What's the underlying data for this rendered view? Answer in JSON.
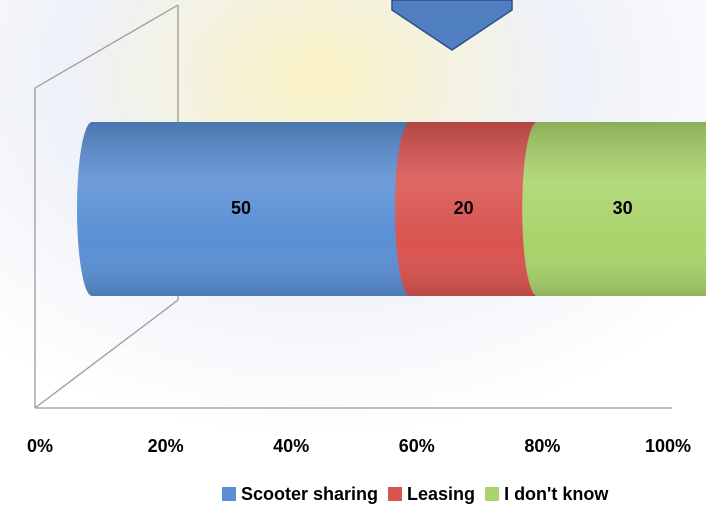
{
  "chart_data": {
    "type": "stacked-bar-horizontal",
    "series": [
      {
        "name": "Scooter sharing",
        "color": "#5a8fd4",
        "values": [
          50
        ]
      },
      {
        "name": "Leasing",
        "color": "#d9534f",
        "values": [
          20
        ]
      },
      {
        "name": "I don't know",
        "color": "#a9d46b",
        "values": [
          30
        ]
      }
    ],
    "xlim": [
      0,
      100
    ],
    "xticks": [
      {
        "value": 0,
        "label": "0%"
      },
      {
        "value": 20,
        "label": "20%"
      },
      {
        "value": 40,
        "label": "40%"
      },
      {
        "value": 60,
        "label": "60%"
      },
      {
        "value": 80,
        "label": "80%"
      },
      {
        "value": 100,
        "label": "100%"
      }
    ],
    "legend": "bottom"
  }
}
